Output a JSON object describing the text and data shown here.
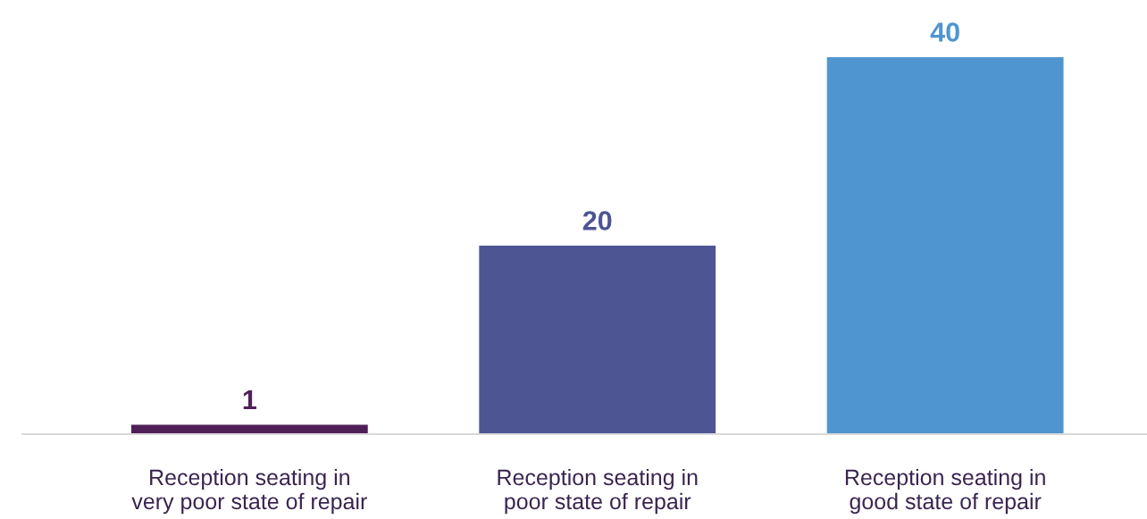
{
  "chart_data": {
    "type": "bar",
    "categories": [
      "Reception seating in\nvery poor state of repair",
      "Reception seating in\npoor state of repair",
      "Reception seating in\ngood state of repair"
    ],
    "values": [
      1,
      20,
      40
    ],
    "colors": [
      "#4f2058",
      "#4d5592",
      "#4f95d0"
    ],
    "data_labels": true,
    "grid": false
  }
}
